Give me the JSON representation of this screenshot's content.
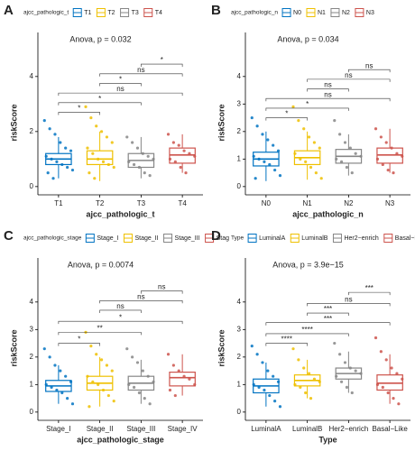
{
  "chart_data": [
    {
      "type": "box",
      "letter": "A",
      "legend_title": "ajcc_pathologic_t",
      "legend_labels": [
        "T1",
        "T2",
        "T3",
        "T4"
      ],
      "colors": [
        "#0073C2",
        "#EFC000",
        "#868686",
        "#CD534C"
      ],
      "annotation": "Anova, p = 0.032",
      "categories": [
        "T1",
        "T2",
        "T3",
        "T4"
      ],
      "xlabel": "ajcc_pathologic_t",
      "ylabel": "riskScore",
      "ylim": [
        -0.3,
        5.6
      ],
      "yticks": [
        0,
        2,
        4
      ],
      "boxes": [
        {
          "whisker_low": 0.3,
          "q1": 0.8,
          "median": 1.0,
          "q3": 1.2,
          "whisker_high": 1.8
        },
        {
          "whisker_low": 0.2,
          "q1": 0.8,
          "median": 1.0,
          "q3": 1.3,
          "whisker_high": 2.0
        },
        {
          "whisker_low": 0.3,
          "q1": 0.7,
          "median": 0.95,
          "q3": 1.2,
          "whisker_high": 1.8
        },
        {
          "whisker_low": 0.5,
          "q1": 0.85,
          "median": 1.15,
          "q3": 1.4,
          "whisker_high": 1.9
        }
      ],
      "points": [
        [
          2.4,
          2.1,
          1.9,
          1.6,
          1.4,
          1.3,
          1.1,
          1.0,
          0.9,
          0.8,
          0.7,
          0.6,
          0.5,
          0.3
        ],
        [
          2.9,
          2.5,
          2.2,
          2.0,
          1.8,
          1.6,
          1.4,
          1.2,
          1.0,
          0.9,
          0.8,
          0.7,
          0.5,
          0.3
        ],
        [
          1.8,
          1.6,
          1.4,
          1.2,
          1.1,
          1.0,
          0.9,
          0.8,
          0.7,
          0.5,
          0.4
        ],
        [
          1.9,
          1.6,
          1.5,
          1.3,
          1.2,
          1.1,
          1.0,
          0.9,
          0.7,
          0.5
        ]
      ],
      "brackets": [
        {
          "from": 0,
          "to": 1,
          "y": 2.7,
          "label": "*"
        },
        {
          "from": 0,
          "to": 2,
          "y": 3.05,
          "label": "*"
        },
        {
          "from": 0,
          "to": 3,
          "y": 3.4,
          "label": "ns"
        },
        {
          "from": 1,
          "to": 2,
          "y": 3.75,
          "label": "*"
        },
        {
          "from": 1,
          "to": 3,
          "y": 4.1,
          "label": "ns"
        },
        {
          "from": 2,
          "to": 3,
          "y": 4.45,
          "label": "*"
        }
      ]
    },
    {
      "type": "box",
      "letter": "B",
      "legend_title": "ajcc_pathologic_n",
      "legend_labels": [
        "N0",
        "N1",
        "N2",
        "N3"
      ],
      "colors": [
        "#0073C2",
        "#EFC000",
        "#868686",
        "#CD534C"
      ],
      "annotation": "Anova, p = 0.034",
      "categories": [
        "N0",
        "N1",
        "N2",
        "N3"
      ],
      "xlabel": "ajcc_pathologic_n",
      "ylabel": "riskScore",
      "ylim": [
        -0.3,
        5.6
      ],
      "yticks": [
        0,
        1,
        2,
        3,
        4
      ],
      "boxes": [
        {
          "whisker_low": 0.2,
          "q1": 0.75,
          "median": 1.0,
          "q3": 1.25,
          "whisker_high": 2.0
        },
        {
          "whisker_low": 0.25,
          "q1": 0.8,
          "median": 1.05,
          "q3": 1.3,
          "whisker_high": 2.0
        },
        {
          "whisker_low": 0.4,
          "q1": 0.85,
          "median": 1.1,
          "q3": 1.35,
          "whisker_high": 1.9
        },
        {
          "whisker_low": 0.5,
          "q1": 0.85,
          "median": 1.15,
          "q3": 1.4,
          "whisker_high": 2.1
        }
      ],
      "points": [
        [
          2.5,
          2.2,
          1.9,
          1.7,
          1.5,
          1.3,
          1.1,
          1.0,
          0.9,
          0.8,
          0.6,
          0.4,
          0.3
        ],
        [
          2.9,
          2.4,
          2.1,
          1.8,
          1.6,
          1.4,
          1.2,
          1.0,
          0.9,
          0.7,
          0.5,
          0.3
        ],
        [
          2.4,
          1.9,
          1.6,
          1.4,
          1.2,
          1.1,
          1.0,
          0.9,
          0.7,
          0.5
        ],
        [
          2.1,
          1.8,
          1.6,
          1.4,
          1.2,
          1.1,
          1.0,
          0.8,
          0.6,
          0.5
        ]
      ],
      "brackets": [
        {
          "from": 0,
          "to": 1,
          "y": 2.5,
          "label": "*"
        },
        {
          "from": 0,
          "to": 2,
          "y": 2.85,
          "label": "*"
        },
        {
          "from": 0,
          "to": 3,
          "y": 3.2,
          "label": "ns"
        },
        {
          "from": 1,
          "to": 2,
          "y": 3.55,
          "label": "ns"
        },
        {
          "from": 1,
          "to": 3,
          "y": 3.9,
          "label": "ns"
        },
        {
          "from": 2,
          "to": 3,
          "y": 4.25,
          "label": "ns"
        }
      ]
    },
    {
      "type": "box",
      "letter": "C",
      "legend_title": "ajcc_pathologic_stage",
      "legend_labels": [
        "Stage_I",
        "Stage_II",
        "Stage_III",
        "Stag"
      ],
      "colors": [
        "#0073C2",
        "#EFC000",
        "#868686",
        "#CD534C"
      ],
      "annotation": "Anova, p = 0.0074",
      "categories": [
        "Stage_I",
        "Stage_II",
        "Stage_III",
        "Stage_IV"
      ],
      "xlabel": "ajcc_pathologic_stage",
      "ylabel": "riskScore",
      "ylim": [
        -0.3,
        5.6
      ],
      "yticks": [
        0,
        1,
        2,
        3,
        4
      ],
      "boxes": [
        {
          "whisker_low": 0.3,
          "q1": 0.75,
          "median": 0.95,
          "q3": 1.15,
          "whisker_high": 1.7
        },
        {
          "whisker_low": 0.2,
          "q1": 0.8,
          "median": 1.05,
          "q3": 1.3,
          "whisker_high": 2.0
        },
        {
          "whisker_low": 0.3,
          "q1": 0.8,
          "median": 1.05,
          "q3": 1.3,
          "whisker_high": 1.9
        },
        {
          "whisker_low": 0.6,
          "q1": 0.95,
          "median": 1.25,
          "q3": 1.45,
          "whisker_high": 2.1
        }
      ],
      "points": [
        [
          2.3,
          2.0,
          1.7,
          1.5,
          1.3,
          1.1,
          1.0,
          0.9,
          0.8,
          0.7,
          0.5,
          0.3
        ],
        [
          2.9,
          2.4,
          2.1,
          1.9,
          1.7,
          1.5,
          1.3,
          1.1,
          1.0,
          0.8,
          0.6,
          0.4,
          0.2
        ],
        [
          2.3,
          2.0,
          1.8,
          1.5,
          1.3,
          1.1,
          1.0,
          0.9,
          0.7,
          0.5,
          0.3
        ],
        [
          2.1,
          1.7,
          1.5,
          1.3,
          1.2,
          1.0,
          0.8,
          0.6
        ]
      ],
      "brackets": [
        {
          "from": 0,
          "to": 1,
          "y": 2.5,
          "label": "*"
        },
        {
          "from": 0,
          "to": 2,
          "y": 2.9,
          "label": "**"
        },
        {
          "from": 0,
          "to": 3,
          "y": 3.3,
          "label": "*"
        },
        {
          "from": 1,
          "to": 2,
          "y": 3.7,
          "label": "ns"
        },
        {
          "from": 1,
          "to": 3,
          "y": 4.05,
          "label": "ns"
        },
        {
          "from": 2,
          "to": 3,
          "y": 4.4,
          "label": "ns"
        }
      ]
    },
    {
      "type": "box",
      "letter": "D",
      "legend_title": "Type",
      "legend_labels": [
        "LuminalA",
        "LuminalB",
        "Her2−enrich",
        "Basal−Like"
      ],
      "colors": [
        "#0073C2",
        "#EFC000",
        "#868686",
        "#CD534C"
      ],
      "annotation": "Anova, p = 3.9e−15",
      "categories": [
        "LuminalA",
        "LuminalB",
        "Her2−enrich",
        "Basal−Like"
      ],
      "xlabel": "Type",
      "ylabel": "riskScore",
      "ylim": [
        -0.3,
        5.6
      ],
      "yticks": [
        0,
        1,
        2,
        3,
        4
      ],
      "boxes": [
        {
          "whisker_low": 0.2,
          "q1": 0.7,
          "median": 0.95,
          "q3": 1.2,
          "whisker_high": 1.8
        },
        {
          "whisker_low": 0.5,
          "q1": 0.95,
          "median": 1.15,
          "q3": 1.35,
          "whisker_high": 1.9
        },
        {
          "whisker_low": 0.7,
          "q1": 1.2,
          "median": 1.4,
          "q3": 1.6,
          "whisker_high": 2.2
        },
        {
          "whisker_low": 0.3,
          "q1": 0.8,
          "median": 1.05,
          "q3": 1.35,
          "whisker_high": 2.1
        }
      ],
      "points": [
        [
          2.4,
          2.1,
          1.8,
          1.5,
          1.3,
          1.1,
          1.0,
          0.9,
          0.8,
          0.6,
          0.4,
          0.2
        ],
        [
          2.3,
          1.9,
          1.6,
          1.4,
          1.2,
          1.1,
          1.0,
          0.9,
          0.7,
          0.5
        ],
        [
          2.5,
          2.1,
          1.8,
          1.6,
          1.5,
          1.4,
          1.3,
          1.1,
          0.9,
          0.7
        ],
        [
          2.7,
          2.2,
          1.9,
          1.6,
          1.4,
          1.2,
          1.0,
          0.9,
          0.7,
          0.5,
          0.3
        ]
      ],
      "brackets": [
        {
          "from": 0,
          "to": 1,
          "y": 2.5,
          "label": "****"
        },
        {
          "from": 0,
          "to": 2,
          "y": 2.85,
          "label": "****"
        },
        {
          "from": 0,
          "to": 3,
          "y": 3.25,
          "label": "***"
        },
        {
          "from": 1,
          "to": 2,
          "y": 3.6,
          "label": "***"
        },
        {
          "from": 1,
          "to": 3,
          "y": 3.95,
          "label": "ns"
        },
        {
          "from": 2,
          "to": 3,
          "y": 4.35,
          "label": "***"
        }
      ]
    }
  ]
}
